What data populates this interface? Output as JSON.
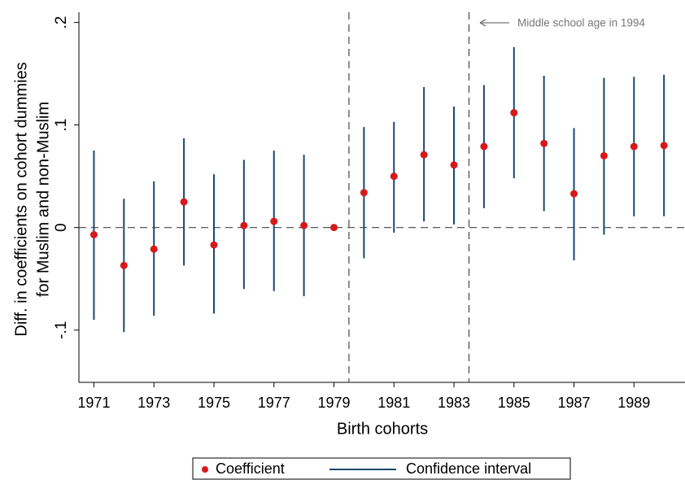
{
  "chart_data": {
    "type": "errorbar",
    "y_label_lines": [
      "Diff. in coefficients on cohort dummies",
      "for Muslim and non-Muslim"
    ],
    "x_label": "Birth cohorts",
    "x": [
      1971,
      1972,
      1973,
      1974,
      1975,
      1976,
      1977,
      1978,
      1979,
      1980,
      1981,
      1982,
      1983,
      1984,
      1985,
      1986,
      1987,
      1988,
      1989,
      1990
    ],
    "series": [
      {
        "name": "Coefficient",
        "color": "#d7191c",
        "values": [
          -0.007,
          -0.037,
          -0.021,
          0.025,
          -0.017,
          0.002,
          0.006,
          0.002,
          0,
          0.034,
          0.05,
          0.071,
          0.061,
          0.079,
          0.112,
          0.082,
          0.033,
          0.07,
          0.079,
          0.08
        ]
      },
      {
        "name": "Confidence interval",
        "color": "#1a476f",
        "low": [
          -0.09,
          -0.102,
          -0.086,
          -0.037,
          -0.084,
          -0.06,
          -0.062,
          -0.067,
          null,
          -0.03,
          -0.005,
          0.006,
          0.003,
          0.019,
          0.048,
          0.016,
          -0.032,
          -0.007,
          0.011,
          0.011
        ],
        "high": [
          0.075,
          0.028,
          0.045,
          0.087,
          0.052,
          0.066,
          0.075,
          0.071,
          null,
          0.098,
          0.103,
          0.137,
          0.118,
          0.139,
          0.176,
          0.148,
          0.097,
          0.146,
          0.147,
          0.149
        ]
      }
    ],
    "xlim": [
      1970.5,
      1990.7
    ],
    "xticks": [
      1971,
      1973,
      1975,
      1977,
      1979,
      1981,
      1983,
      1985,
      1987,
      1989
    ],
    "ylim": [
      -0.151,
      0.21
    ],
    "yticks": [
      {
        "value": -0.1,
        "label": "-.1"
      },
      0,
      {
        "value": 0.1,
        "label": ".1"
      },
      {
        "value": 0.2,
        "label": ".2"
      }
    ],
    "vlines": [
      1979.5,
      1983.5
    ],
    "hline": 0,
    "annotation": "Middle school age in 1994"
  }
}
